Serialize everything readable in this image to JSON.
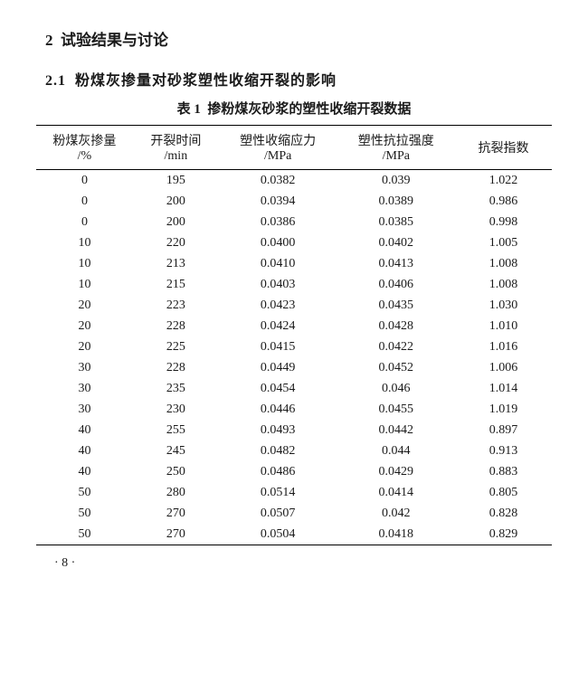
{
  "section": {
    "number": "2",
    "title": "试验结果与讨论"
  },
  "subsection": {
    "number": "2.1",
    "title": "粉煤灰掺量对砂浆塑性收缩开裂的影响"
  },
  "table": {
    "label": "表 1",
    "title": "掺粉煤灰砂浆的塑性收缩开裂数据",
    "columns": [
      {
        "header_line1": "粉煤灰掺量",
        "header_line2": "/%"
      },
      {
        "header_line1": "开裂时间",
        "header_line2": "/min"
      },
      {
        "header_line1": "塑性收缩应力",
        "header_line2": "/MPa"
      },
      {
        "header_line1": "塑性抗拉强度",
        "header_line2": "/MPa"
      },
      {
        "header_line1": "抗裂指数",
        "header_line2": ""
      }
    ],
    "rows": [
      [
        "0",
        "195",
        "0.0382",
        "0.039",
        "1.022"
      ],
      [
        "0",
        "200",
        "0.0394",
        "0.0389",
        "0.986"
      ],
      [
        "0",
        "200",
        "0.0386",
        "0.0385",
        "0.998"
      ],
      [
        "10",
        "220",
        "0.0400",
        "0.0402",
        "1.005"
      ],
      [
        "10",
        "213",
        "0.0410",
        "0.0413",
        "1.008"
      ],
      [
        "10",
        "215",
        "0.0403",
        "0.0406",
        "1.008"
      ],
      [
        "20",
        "223",
        "0.0423",
        "0.0435",
        "1.030"
      ],
      [
        "20",
        "228",
        "0.0424",
        "0.0428",
        "1.010"
      ],
      [
        "20",
        "225",
        "0.0415",
        "0.0422",
        "1.016"
      ],
      [
        "30",
        "228",
        "0.0449",
        "0.0452",
        "1.006"
      ],
      [
        "30",
        "235",
        "0.0454",
        "0.046",
        "1.014"
      ],
      [
        "30",
        "230",
        "0.0446",
        "0.0455",
        "1.019"
      ],
      [
        "40",
        "255",
        "0.0493",
        "0.0442",
        "0.897"
      ],
      [
        "40",
        "245",
        "0.0482",
        "0.044",
        "0.913"
      ],
      [
        "40",
        "250",
        "0.0486",
        "0.0429",
        "0.883"
      ],
      [
        "50",
        "280",
        "0.0514",
        "0.0414",
        "0.805"
      ],
      [
        "50",
        "270",
        "0.0507",
        "0.042",
        "0.828"
      ],
      [
        "50",
        "270",
        "0.0504",
        "0.0418",
        "0.829"
      ]
    ]
  },
  "page_number": "· 8 ·"
}
